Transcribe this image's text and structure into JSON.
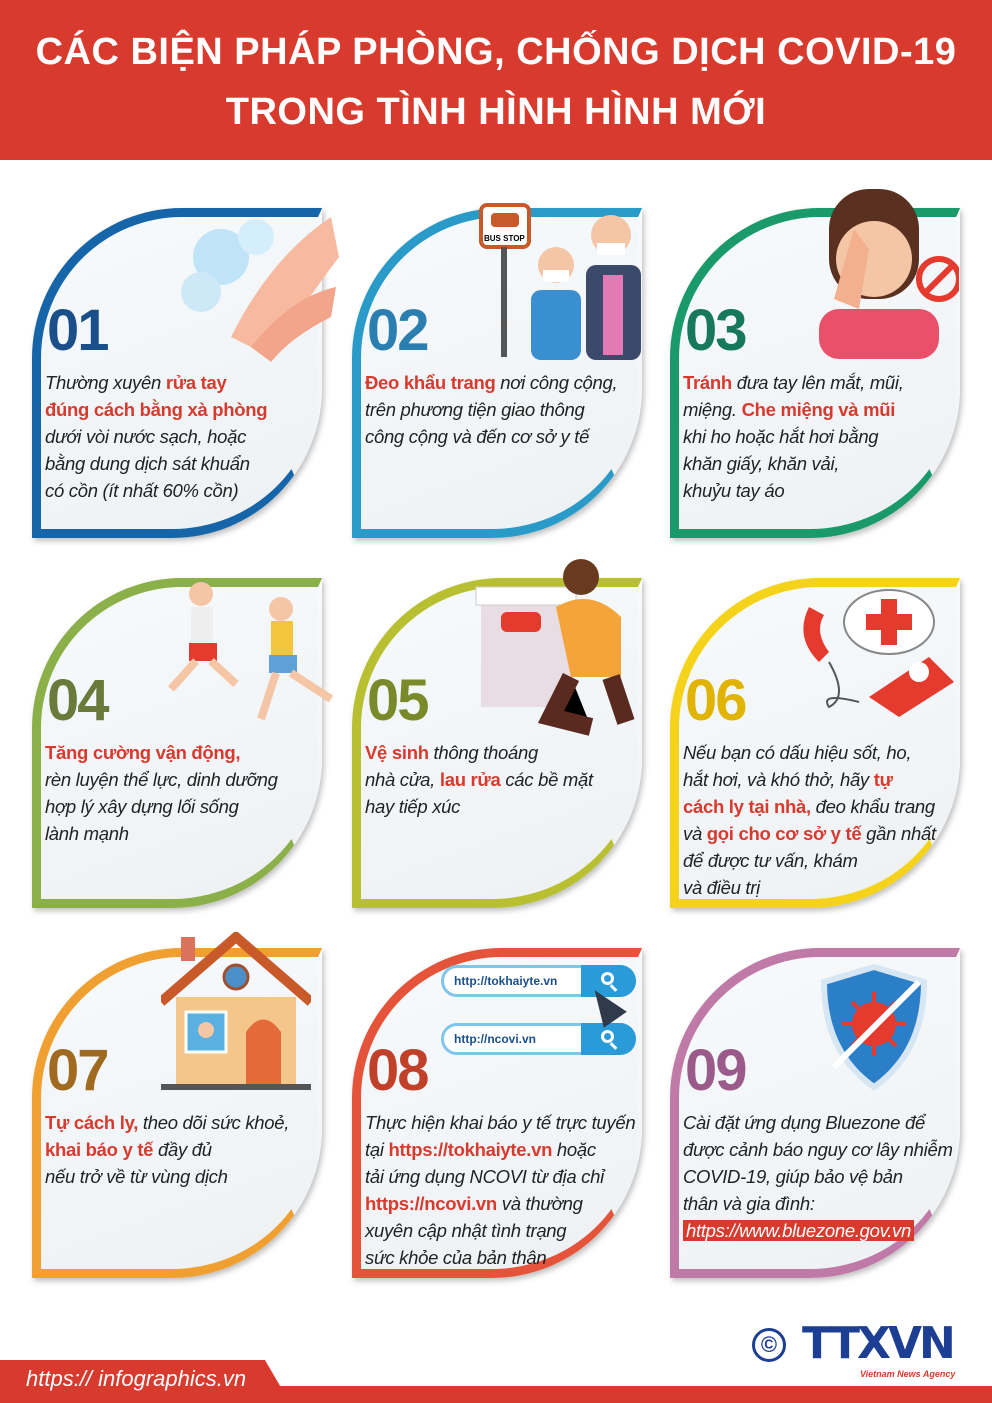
{
  "header": {
    "line1": "CÁC BIỆN PHÁP PHÒNG, CHỐNG DỊCH COVID-19",
    "line2": "TRONG TÌNH HÌNH HÌNH MỚI"
  },
  "cards": [
    {
      "number": "01",
      "color": "#1565a8",
      "num_color": "#1b4f8a",
      "icon": "handwashing-icon",
      "lines": [
        [
          {
            "t": "Thường xuyên "
          },
          {
            "t": "rửa tay",
            "b": 1
          }
        ],
        [
          {
            "t": "đúng cách bằng xà phòng",
            "b": 1
          }
        ],
        [
          {
            "t": "dưới vòi nước sạch, hoặc"
          }
        ],
        [
          {
            "t": "bằng dung dịch sát khuẩn"
          }
        ],
        [
          {
            "t": "có cồn (ít nhất 60% cồn)"
          }
        ]
      ]
    },
    {
      "number": "02",
      "color": "#2a9bc8",
      "num_color": "#2a7fb0",
      "icon": "bus-stop-mask-people-icon",
      "bus_stop_label": "BUS STOP",
      "lines": [
        [
          {
            "t": "Đeo khẩu trang",
            "b": 1
          },
          {
            "t": " nơi công cộng,"
          }
        ],
        [
          {
            "t": "trên phương tiện giao thông"
          }
        ],
        [
          {
            "t": "công cộng và đến cơ sở y tế"
          }
        ]
      ]
    },
    {
      "number": "03",
      "color": "#1a9a6a",
      "num_color": "#17785a",
      "icon": "no-touching-face-icon",
      "lines": [
        [
          {
            "t": "Tránh",
            "b": 1
          },
          {
            "t": " đưa tay lên mắt, mũi,"
          }
        ],
        [
          {
            "t": "miệng. "
          },
          {
            "t": "Che miệng và mũi",
            "b": 1
          }
        ],
        [
          {
            "t": "khi ho hoặc hắt hơi bằng"
          }
        ],
        [
          {
            "t": "khăn giấy, khăn vải,"
          }
        ],
        [
          {
            "t": "khuỷu tay áo"
          }
        ]
      ]
    },
    {
      "number": "04",
      "color": "#8bb04a",
      "num_color": "#6a7a3a",
      "icon": "running-people-icon",
      "lines": [
        [
          {
            "t": "Tăng cường vận động,",
            "b": 1
          }
        ],
        [
          {
            "t": "rèn luyện thể lực, dinh dưỡng"
          }
        ],
        [
          {
            "t": "hợp lý xây dựng lối sống"
          }
        ],
        [
          {
            "t": "lành mạnh"
          }
        ]
      ]
    },
    {
      "number": "05",
      "color": "#b8c032",
      "num_color": "#7a8a2a",
      "icon": "cleaning-surface-icon",
      "lines": [
        [
          {
            "t": "Vệ sinh",
            "b": 1
          },
          {
            "t": " thông thoáng"
          }
        ],
        [
          {
            "t": "nhà cửa, "
          },
          {
            "t": "lau rửa",
            "b": 1
          },
          {
            "t": " các bề mặt"
          }
        ],
        [
          {
            "t": "hay tiếp xúc"
          }
        ]
      ]
    },
    {
      "number": "06",
      "color": "#f5d31a",
      "num_color": "#e0b400",
      "icon": "phone-medical-cross-icon",
      "lines": [
        [
          {
            "t": "Nếu bạn có dấu hiệu sốt, ho,"
          }
        ],
        [
          {
            "t": "hắt hơi, và khó thở, hãy "
          },
          {
            "t": "tự",
            "b": 1
          }
        ],
        [
          {
            "t": "cách ly tại  nhà,",
            "b": 1
          },
          {
            "t": " đeo khẩu trang"
          }
        ],
        [
          {
            "t": "và "
          },
          {
            "t": "gọi cho cơ sở y tế",
            "b": 1
          },
          {
            "t": " gần nhất"
          }
        ],
        [
          {
            "t": "để được tư vấn, khám"
          }
        ],
        [
          {
            "t": "và điều trị"
          }
        ]
      ]
    },
    {
      "number": "07",
      "color": "#f0a030",
      "num_color": "#a06a20",
      "icon": "house-quarantine-icon",
      "lines": [
        [
          {
            "t": "Tự cách ly,",
            "b": 1
          },
          {
            "t": " theo dõi sức khoẻ,"
          }
        ],
        [
          {
            "t": "khai báo y tế",
            "b": 1
          },
          {
            "t": " đầy đủ"
          }
        ],
        [
          {
            "t": "nếu trở về từ vùng dịch"
          }
        ]
      ]
    },
    {
      "number": "08",
      "color": "#e5533a",
      "num_color": "#c0402a",
      "icon": "search-bar-icon",
      "search": [
        "http://tokhaiyte.vn",
        "http://ncovi.vn"
      ],
      "lines": [
        [
          {
            "t": "Thực hiện khai báo y tế trực tuyến"
          }
        ],
        [
          {
            "t": "tại "
          },
          {
            "t": "https://tokhaiyte.vn",
            "b": 1
          },
          {
            "t": " hoặc"
          }
        ],
        [
          {
            "t": "tải ứng dụng NCOVI từ địa chỉ"
          }
        ],
        [
          {
            "t": "https://ncovi.vn",
            "b": 1
          },
          {
            "t": " và thường"
          }
        ],
        [
          {
            "t": "xuyên cập nhật tình trạng"
          }
        ],
        [
          {
            "t": "sức khỏe của bản thân"
          }
        ]
      ]
    },
    {
      "number": "09",
      "color": "#c07aa8",
      "num_color": "#9a5a8a",
      "icon": "shield-virus-icon",
      "lines": [
        [
          {
            "t": "Cài đặt ứng dụng Bluezone để"
          }
        ],
        [
          {
            "t": "được cảnh báo nguy cơ lây nhiễm"
          }
        ],
        [
          {
            "t": "COVID-19, giúp  bảo vệ bản"
          }
        ],
        [
          {
            "t": "thân và gia đình:"
          }
        ],
        [
          {
            "t": "https://www.bluezone.gov.vn",
            "hl": 1
          }
        ]
      ]
    }
  ],
  "footer": {
    "url": "https:// infographics.vn",
    "logo_text": "TTXVN",
    "logo_sub": "Vietnam News Agency",
    "copyright": "©"
  }
}
